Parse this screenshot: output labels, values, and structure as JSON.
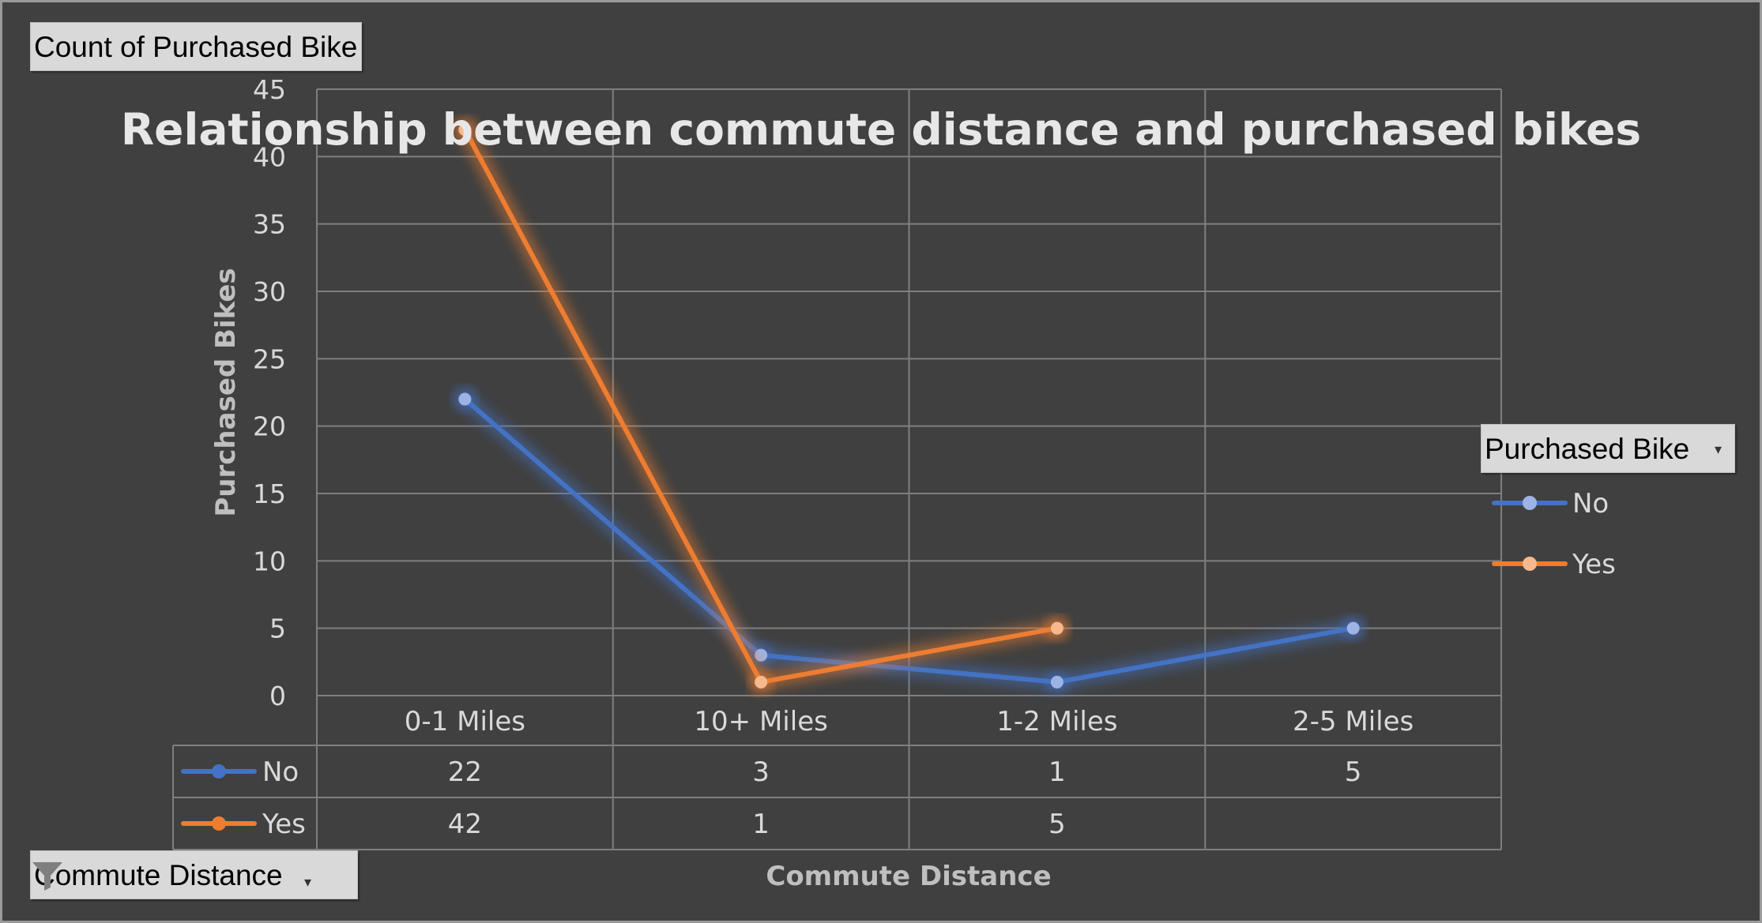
{
  "chart_data": {
    "type": "line",
    "title": "Relationship between commute distance and purchased bikes",
    "xlabel": "Commute Distance",
    "ylabel": "Purchased Bikes",
    "categories": [
      "0-1 Miles",
      "10+ Miles",
      "1-2 Miles",
      "2-5 Miles"
    ],
    "ylim": [
      0,
      45
    ],
    "yticks": [
      0,
      5,
      10,
      15,
      20,
      25,
      30,
      35,
      40,
      45
    ],
    "grid": true,
    "legend_position": "right",
    "legend_title": "Purchased Bike",
    "series": [
      {
        "name": "No",
        "color": "#4472c4",
        "values": [
          22,
          3,
          1,
          5
        ]
      },
      {
        "name": "Yes",
        "color": "#ed7d31",
        "values": [
          42,
          1,
          5,
          null
        ]
      }
    ],
    "data_table": true
  },
  "pivot": {
    "value_field": "Count of Purchased Bike",
    "legend_field": "Purchased Bike",
    "axis_field": "Commute Distance"
  },
  "icons": {
    "dropdown": "chevron-down-icon",
    "filter": "filter-icon"
  }
}
